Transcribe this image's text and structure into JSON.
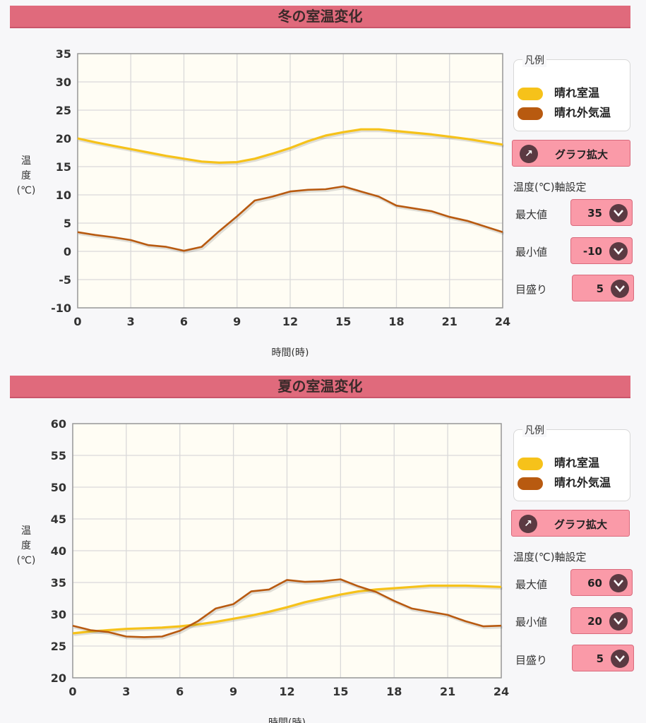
{
  "winter": {
    "title": "冬の室温変化",
    "legend": {
      "title": "凡例",
      "items": [
        "晴れ室温",
        "晴れ外気温"
      ]
    },
    "zoom_label": "グラフ拡大",
    "axis_setting_heading": "温度(℃)軸設定",
    "settings": {
      "max": {
        "label": "最大値",
        "value": "35"
      },
      "min": {
        "label": "最小値",
        "value": "-10"
      },
      "step": {
        "label": "目盛り",
        "value": "5"
      }
    }
  },
  "summer": {
    "title": "夏の室温変化",
    "legend": {
      "title": "凡例",
      "items": [
        "晴れ室温",
        "晴れ外気温"
      ]
    },
    "zoom_label": "グラフ拡大",
    "axis_setting_heading": "温度(℃)軸設定",
    "settings": {
      "max": {
        "label": "最大値",
        "value": "60"
      },
      "min": {
        "label": "最小値",
        "value": "20"
      },
      "step": {
        "label": "目盛り",
        "value": "5"
      }
    }
  },
  "colors": {
    "indoor": "#f6c21a",
    "outdoor": "#b85a10",
    "plot_bg": "#fffdf4",
    "header": "#e06a7c",
    "button": "#fa9aa8"
  },
  "chart_data": [
    {
      "type": "line",
      "title": "冬の室温変化",
      "xlabel": "時間(時)",
      "ylabel": "温度(℃)",
      "xlim": [
        0,
        24
      ],
      "ylim": [
        -10,
        35
      ],
      "xticks": [
        0,
        3,
        6,
        9,
        12,
        15,
        18,
        21,
        24
      ],
      "yticks": [
        -10,
        -5,
        0,
        5,
        10,
        15,
        20,
        25,
        30,
        35
      ],
      "grid": true,
      "legend_position": "right",
      "x": [
        0,
        1,
        2,
        3,
        4,
        5,
        6,
        7,
        8,
        9,
        10,
        11,
        12,
        13,
        14,
        15,
        16,
        17,
        18,
        19,
        20,
        21,
        22,
        23,
        24
      ],
      "series": [
        {
          "name": "晴れ室温",
          "color": "#f6c21a",
          "values": [
            20.0,
            19.3,
            18.7,
            18.1,
            17.5,
            16.9,
            16.4,
            15.9,
            15.7,
            15.8,
            16.4,
            17.3,
            18.3,
            19.5,
            20.5,
            21.1,
            21.6,
            21.6,
            21.3,
            21.0,
            20.7,
            20.3,
            19.9,
            19.4,
            18.9
          ]
        },
        {
          "name": "晴れ外気温",
          "color": "#b85a10",
          "values": [
            3.4,
            2.9,
            2.5,
            2.0,
            1.1,
            0.8,
            0.1,
            0.8,
            3.6,
            6.2,
            9.0,
            9.7,
            10.6,
            10.9,
            11.0,
            11.5,
            10.6,
            9.7,
            8.1,
            7.6,
            7.1,
            6.1,
            5.4,
            4.4,
            3.4
          ]
        }
      ]
    },
    {
      "type": "line",
      "title": "夏の室温変化",
      "xlabel": "時間(時)",
      "ylabel": "温度(℃)",
      "xlim": [
        0,
        24
      ],
      "ylim": [
        20,
        60
      ],
      "xticks": [
        0,
        3,
        6,
        9,
        12,
        15,
        18,
        21,
        24
      ],
      "yticks": [
        20,
        25,
        30,
        35,
        40,
        45,
        50,
        55,
        60
      ],
      "grid": true,
      "legend_position": "right",
      "x": [
        0,
        1,
        2,
        3,
        4,
        5,
        6,
        7,
        8,
        9,
        10,
        11,
        12,
        13,
        14,
        15,
        16,
        17,
        18,
        19,
        20,
        21,
        22,
        23,
        24
      ],
      "series": [
        {
          "name": "晴れ室温",
          "color": "#f6c21a",
          "values": [
            27.0,
            27.3,
            27.5,
            27.7,
            27.8,
            27.9,
            28.1,
            28.4,
            28.8,
            29.3,
            29.8,
            30.4,
            31.1,
            31.9,
            32.5,
            33.1,
            33.6,
            33.9,
            34.1,
            34.3,
            34.5,
            34.5,
            34.5,
            34.4,
            34.3
          ]
        },
        {
          "name": "晴れ外気温",
          "color": "#b85a10",
          "values": [
            28.2,
            27.5,
            27.2,
            26.5,
            26.4,
            26.5,
            27.4,
            28.9,
            30.9,
            31.6,
            33.6,
            33.9,
            35.4,
            35.1,
            35.2,
            35.5,
            34.4,
            33.5,
            32.1,
            30.9,
            30.4,
            29.9,
            28.9,
            28.1,
            28.2
          ]
        }
      ]
    }
  ]
}
